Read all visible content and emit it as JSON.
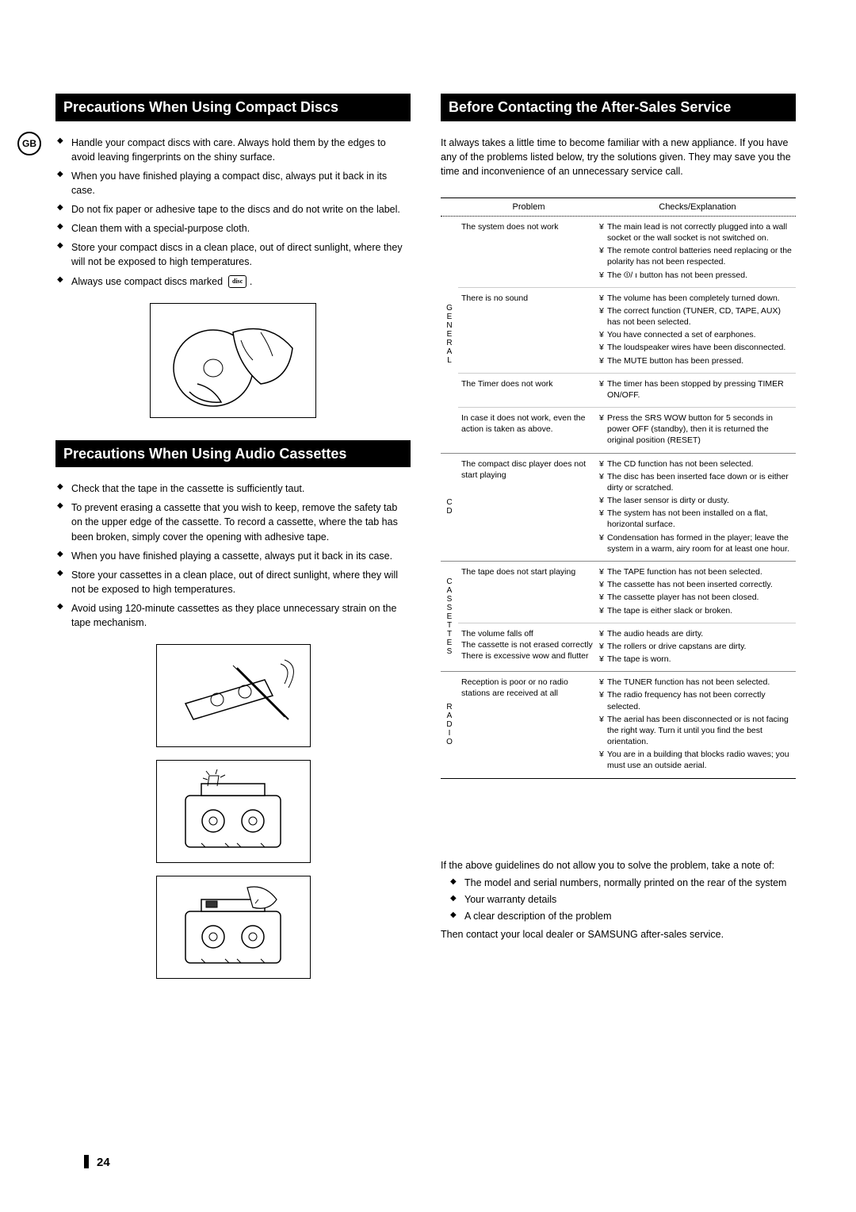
{
  "badge": "GB",
  "left": {
    "section1": {
      "title": "Precautions When Using Compact Discs",
      "bullets": [
        "Handle your compact discs with care. Always hold them by the edges to avoid leaving fingerprints on the shiny surface.",
        "When you have finished playing a compact disc, always put it back in its case.",
        "Do not fix paper or adhesive tape to the discs and do not write on the label.",
        "Clean them with a special-purpose cloth.",
        "Store your compact discs in a clean place, out of direct sunlight, where they will not be exposed to high temperatures.",
        "Always use compact discs marked"
      ]
    },
    "section2": {
      "title": "Precautions When Using Audio Cassettes",
      "bullets": [
        "Check that the tape in the cassette is sufficiently taut.",
        "To prevent erasing a cassette that you wish to keep, remove the safety tab on the upper edge of the cassette. To record a cassette, where  the tab has been broken, simply cover the opening with adhesive tape.",
        "When you have finished playing a cassette, always put it back in its case.",
        "Store your cassettes in a clean place, out of direct sunlight, where they will not be exposed to high temperatures.",
        "Avoid using 120-minute cassettes as they place unnecessary strain on the tape mechanism."
      ]
    }
  },
  "right": {
    "title": "Before Contacting the After-Sales Service",
    "intro": "It always takes a little time to become familiar with a new appliance. If you have any of the problems listed below, try the solutions given. They may save you the time and inconvenience of an unnecessary service call.",
    "tableHead": {
      "problem": "Problem",
      "checks": "Checks/Explanation"
    },
    "categories": [
      {
        "label": "GENERAL",
        "rows": [
          {
            "problem": "The system does not work",
            "checks": [
              "The main lead is not correctly plugged into a wall socket or the wall socket is not switched on.",
              "The remote control batteries need replacing or the polarity has not been respected.",
              "The ⏼/ ı  button has not been pressed."
            ]
          },
          {
            "problem": "There is no sound",
            "checks": [
              "The volume has been completely turned down.",
              "The correct function (TUNER, CD, TAPE, AUX) has not been selected.",
              "You have connected a set of earphones.",
              "The loudspeaker wires have been disconnected.",
              "The MUTE button has been pressed."
            ]
          },
          {
            "problem": "The Timer does not work",
            "checks": [
              "The timer has been stopped by pressing TIMER ON/OFF."
            ]
          },
          {
            "problem": "In case it does not work, even the action is taken as above.",
            "checks": [
              "Press the SRS WOW button for 5 seconds in power  OFF (standby), then it is returned the original position (RESET)"
            ]
          }
        ]
      },
      {
        "label": "CD",
        "rows": [
          {
            "problem": "The compact disc player does not start playing",
            "checks": [
              "The CD function has not been selected.",
              "The disc has been inserted face down or is either dirty or scratched.",
              "The laser sensor is dirty or dusty.",
              "The system has not been installed on a flat, horizontal surface.",
              "Condensation has formed in the player; leave the system in a warm, airy room for at least one hour."
            ]
          }
        ]
      },
      {
        "label": "CASSETTES",
        "rows": [
          {
            "problem": "The tape does not start playing",
            "checks": [
              "The TAPE function has not been selected.",
              "The cassette has not been inserted correctly.",
              "The cassette player has not been closed.",
              "The tape is either slack or broken."
            ]
          },
          {
            "problem": "The volume falls off\nThe cassette is not erased correctly\nThere is excessive wow and flutter",
            "checks": [
              "The audio heads are dirty.",
              "The rollers or drive capstans are dirty.",
              "The tape is worn."
            ]
          }
        ]
      },
      {
        "label": "RADIO",
        "rows": [
          {
            "problem": "Reception is poor or no radio stations are received at all",
            "checks": [
              "The TUNER function has not been selected.",
              "The radio frequency has not been correctly selected.",
              "The aerial has been disconnected or is not facing the right way. Turn it until you find the best orientation.",
              "You are in a building that blocks radio waves; you must use an outside aerial."
            ]
          }
        ]
      }
    ],
    "closing": {
      "p1": "If the above guidelines do not allow you to solve the problem, take a note of:",
      "items": [
        "The model and serial numbers, normally printed on the rear of the system",
        "Your warranty details",
        "A clear description of the problem"
      ],
      "p2": "Then contact your local dealer or SAMSUNG after-sales service."
    }
  },
  "pageNumber": "24"
}
